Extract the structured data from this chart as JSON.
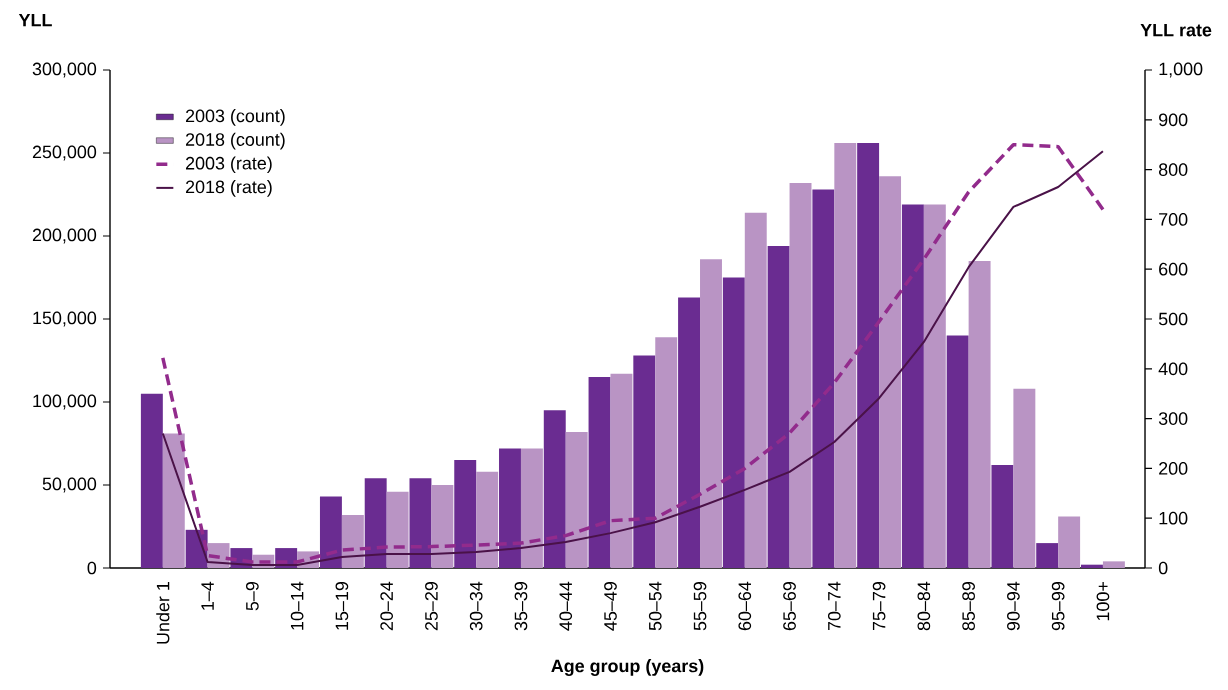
{
  "chart_data": {
    "type": "bar",
    "xlabel": "Age group (years)",
    "ylabel": "YLL",
    "y2label": "YLL rate",
    "categories": [
      "Under 1",
      "1–4",
      "5–9",
      "10–14",
      "15–19",
      "20–24",
      "25–29",
      "30–34",
      "35–39",
      "40–44",
      "45–49",
      "50–54",
      "55–59",
      "60–64",
      "65–69",
      "70–74",
      "75–79",
      "80–84",
      "85–89",
      "90–94",
      "95–99",
      "100+"
    ],
    "series": [
      {
        "name": "2003 (count)",
        "color": "#6a2c91",
        "values": [
          105000,
          23000,
          12000,
          12000,
          43000,
          54000,
          54000,
          65000,
          72000,
          95000,
          115000,
          128000,
          163000,
          175000,
          194000,
          228000,
          256000,
          219000,
          140000,
          62000,
          15000,
          2000
        ]
      },
      {
        "name": "2018 (count)",
        "color": "#b994c4",
        "values": [
          81000,
          15000,
          8000,
          10000,
          32000,
          46000,
          50000,
          58000,
          72000,
          82000,
          117000,
          139000,
          186000,
          214000,
          232000,
          256000,
          236000,
          219000,
          185000,
          108000,
          31000,
          4000
        ]
      },
      {
        "name": "2003 (rate)",
        "type": "line",
        "axis": "y2",
        "line_style": "dashed",
        "color": "#922b8c",
        "values": [
          422,
          25,
          12,
          12,
          36,
          42,
          43,
          46,
          50,
          65,
          95,
          100,
          148,
          200,
          271,
          372,
          495,
          620,
          755,
          850,
          846,
          720
        ]
      },
      {
        "name": "2018 (rate)",
        "type": "line",
        "axis": "y2",
        "line_style": "solid",
        "color": "#4a1248",
        "values": [
          270,
          12,
          6,
          6,
          22,
          28,
          28,
          32,
          40,
          52,
          70,
          92,
          123,
          157,
          193,
          253,
          341,
          454,
          604,
          725,
          765,
          837
        ]
      }
    ],
    "ylim": [
      0,
      300000
    ],
    "yticks": [
      {
        "value": 0,
        "label": "0"
      },
      {
        "value": 50000,
        "label": "50,000"
      },
      {
        "value": 100000,
        "label": "100,000"
      },
      {
        "value": 150000,
        "label": "150,000"
      },
      {
        "value": 200000,
        "label": "200,000"
      },
      {
        "value": 250000,
        "label": "250,000"
      },
      {
        "value": 300000,
        "label": "300,000"
      }
    ],
    "y2lim": [
      0,
      1000
    ],
    "y2ticks": [
      0,
      100,
      200,
      300,
      400,
      500,
      600,
      700,
      800,
      900,
      {
        "value": 1000,
        "label": "1,000"
      }
    ],
    "legend": "top left"
  }
}
